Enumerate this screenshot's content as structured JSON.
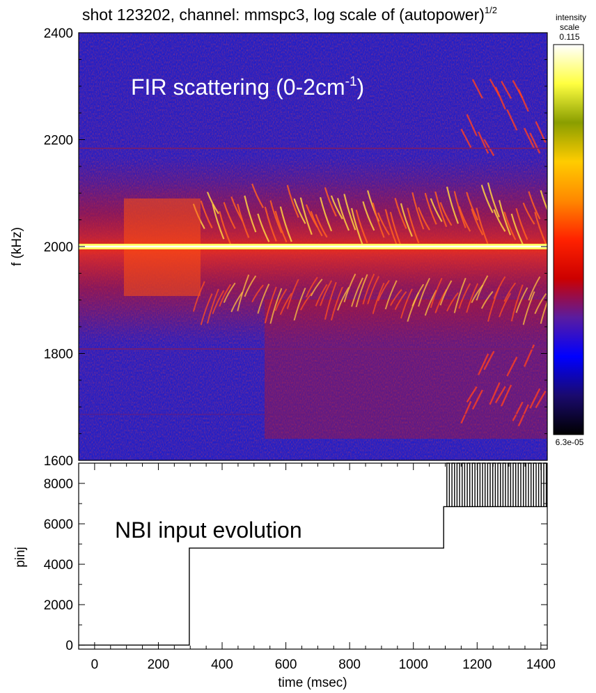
{
  "chart_data": [
    {
      "type": "heatmap",
      "title_main": "shot 123202, channel: mmspc3, log scale of (autopower)",
      "title_sup": "1/2",
      "annotation_main": "FIR scattering (0-2cm",
      "annotation_sup": "-1",
      "annotation_end": ")",
      "ylabel": "f (kHz)",
      "ylim": [
        1600,
        2400
      ],
      "yticks": [
        "1600",
        "1800",
        "2000",
        "2200",
        "2400"
      ],
      "xlim": [
        -50,
        1420
      ],
      "colorbar": {
        "label_line1": "intensity",
        "label_line2": "scale",
        "max_label": "0.115",
        "min_label": "6.3e-05",
        "colors": [
          "#000000",
          "#1a0a6e",
          "#0000ff",
          "#5a1ca0",
          "#cc0000",
          "#ff2200",
          "#ff8800",
          "#ffcc00",
          "#8a9e00",
          "#ffff40",
          "#ffffff"
        ]
      },
      "features": {
        "carrier_line_khz": 2000,
        "mode_bands_khz": [
          [
            2030,
            2140
          ],
          [
            1850,
            1980
          ]
        ],
        "mode_onset_msec": 300
      }
    },
    {
      "type": "line",
      "annotation": "NBI input evolution",
      "xlabel": "time (msec)",
      "ylabel": "pinj",
      "xlim": [
        -50,
        1420
      ],
      "ylim": [
        -200,
        9000
      ],
      "xticks": [
        "0",
        "200",
        "400",
        "600",
        "800",
        "1000",
        "1200",
        "1400"
      ],
      "yticks": [
        "0",
        "2000",
        "4000",
        "6000",
        "8000"
      ],
      "series": [
        {
          "x": [
            -50,
            297,
            297,
            1095,
            1095,
            1105,
            1420
          ],
          "y": [
            0,
            0,
            4800,
            4800,
            6850,
            6850,
            6850
          ]
        }
      ],
      "modulation": {
        "t_start": 1105,
        "t_end": 1420,
        "low": 6850,
        "high": 9000,
        "period_msec": 16
      }
    }
  ]
}
